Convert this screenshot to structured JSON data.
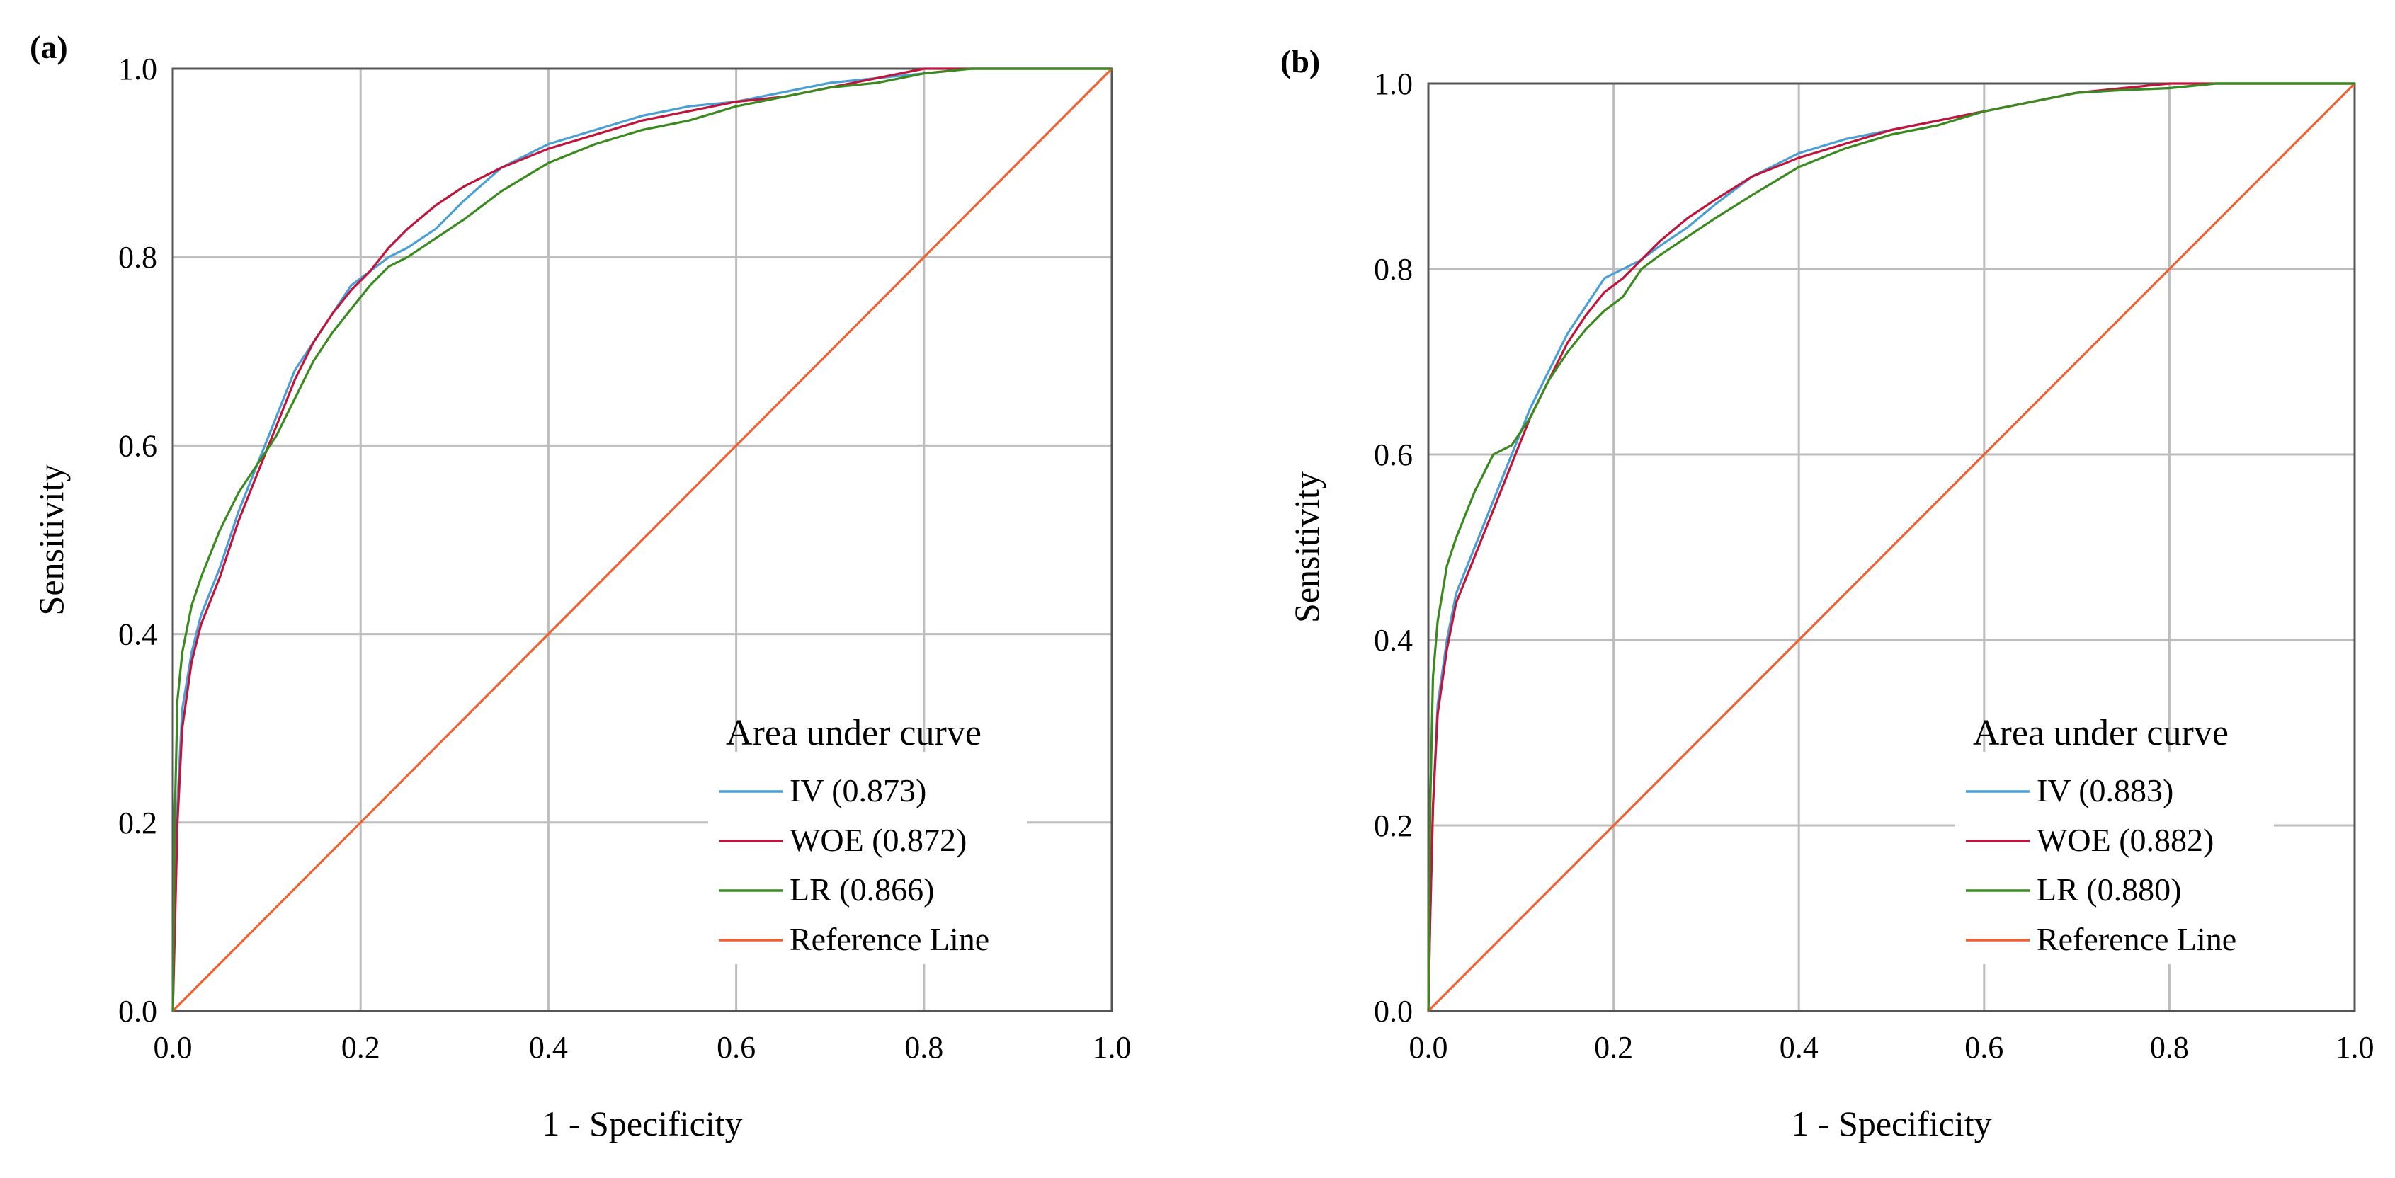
{
  "chart_data": [
    {
      "type": "line",
      "panel_label": "(a)",
      "xlabel": "1 - Specificity",
      "ylabel": "Sensitivity",
      "xlim": [
        0,
        1
      ],
      "ylim": [
        0,
        1
      ],
      "grid": true,
      "x_ticks": [
        "0.0",
        "0.2",
        "0.4",
        "0.6",
        "0.8",
        "1.0"
      ],
      "y_ticks": [
        "0.0",
        "0.2",
        "0.4",
        "0.6",
        "0.8",
        "1.0"
      ],
      "legend": {
        "title": "Area under curve",
        "placement": "bottom-right"
      },
      "series": [
        {
          "name": "IV (0.873)",
          "color": "#4a9fd6",
          "x": [
            0,
            0.002,
            0.005,
            0.01,
            0.02,
            0.03,
            0.05,
            0.07,
            0.09,
            0.11,
            0.13,
            0.15,
            0.17,
            0.19,
            0.21,
            0.23,
            0.25,
            0.28,
            0.31,
            0.35,
            0.4,
            0.45,
            0.5,
            0.55,
            0.6,
            0.65,
            0.7,
            0.75,
            0.8,
            0.85,
            0.9,
            0.95,
            1.0
          ],
          "y": [
            0,
            0.1,
            0.22,
            0.32,
            0.38,
            0.42,
            0.47,
            0.53,
            0.58,
            0.63,
            0.68,
            0.71,
            0.74,
            0.77,
            0.785,
            0.8,
            0.81,
            0.83,
            0.86,
            0.895,
            0.92,
            0.935,
            0.95,
            0.96,
            0.965,
            0.975,
            0.985,
            0.99,
            0.995,
            1.0,
            1.0,
            1.0,
            1.0
          ]
        },
        {
          "name": "WOE (0.872)",
          "color": "#c0143c",
          "x": [
            0,
            0.002,
            0.005,
            0.01,
            0.02,
            0.03,
            0.05,
            0.07,
            0.09,
            0.11,
            0.13,
            0.15,
            0.17,
            0.19,
            0.21,
            0.23,
            0.25,
            0.28,
            0.31,
            0.35,
            0.4,
            0.45,
            0.5,
            0.55,
            0.6,
            0.65,
            0.7,
            0.75,
            0.8,
            0.85,
            0.9,
            0.95,
            1.0
          ],
          "y": [
            0,
            0.08,
            0.2,
            0.3,
            0.37,
            0.41,
            0.46,
            0.52,
            0.57,
            0.62,
            0.67,
            0.71,
            0.74,
            0.765,
            0.785,
            0.81,
            0.83,
            0.855,
            0.875,
            0.895,
            0.915,
            0.93,
            0.945,
            0.955,
            0.965,
            0.97,
            0.98,
            0.99,
            1.0,
            1.0,
            1.0,
            1.0,
            1.0
          ]
        },
        {
          "name": "LR (0.866)",
          "color": "#3a8a1f",
          "x": [
            0,
            0.002,
            0.005,
            0.01,
            0.02,
            0.03,
            0.05,
            0.07,
            0.09,
            0.11,
            0.13,
            0.15,
            0.17,
            0.19,
            0.21,
            0.23,
            0.25,
            0.28,
            0.31,
            0.35,
            0.4,
            0.45,
            0.5,
            0.55,
            0.6,
            0.65,
            0.7,
            0.75,
            0.8,
            0.85,
            0.9,
            0.95,
            1.0
          ],
          "y": [
            0,
            0.2,
            0.33,
            0.38,
            0.43,
            0.46,
            0.51,
            0.55,
            0.58,
            0.61,
            0.65,
            0.69,
            0.72,
            0.745,
            0.77,
            0.79,
            0.8,
            0.82,
            0.84,
            0.87,
            0.9,
            0.92,
            0.935,
            0.945,
            0.96,
            0.97,
            0.98,
            0.985,
            0.995,
            1.0,
            1.0,
            1.0,
            1.0
          ]
        },
        {
          "name": "Reference Line",
          "color": "#f06030",
          "x": [
            0,
            1
          ],
          "y": [
            0,
            1
          ]
        }
      ]
    },
    {
      "type": "line",
      "panel_label": "(b)",
      "xlabel": "1 - Specificity",
      "ylabel": "Sensitivity",
      "xlim": [
        0,
        1
      ],
      "ylim": [
        0,
        1
      ],
      "grid": true,
      "x_ticks": [
        "0.0",
        "0.2",
        "0.4",
        "0.6",
        "0.8",
        "1.0"
      ],
      "y_ticks": [
        "0.0",
        "0.2",
        "0.4",
        "0.6",
        "0.8",
        "1.0"
      ],
      "legend": {
        "title": "Area under curve",
        "placement": "bottom-right"
      },
      "series": [
        {
          "name": "IV (0.883)",
          "color": "#4a9fd6",
          "x": [
            0,
            0.002,
            0.005,
            0.01,
            0.02,
            0.03,
            0.05,
            0.07,
            0.09,
            0.11,
            0.13,
            0.15,
            0.17,
            0.19,
            0.21,
            0.23,
            0.25,
            0.28,
            0.31,
            0.35,
            0.4,
            0.45,
            0.5,
            0.55,
            0.6,
            0.65,
            0.7,
            0.75,
            0.8,
            0.85,
            0.9,
            0.95,
            1.0
          ],
          "y": [
            0,
            0.1,
            0.22,
            0.33,
            0.4,
            0.45,
            0.5,
            0.55,
            0.6,
            0.65,
            0.69,
            0.73,
            0.76,
            0.79,
            0.8,
            0.81,
            0.825,
            0.845,
            0.87,
            0.9,
            0.925,
            0.94,
            0.95,
            0.96,
            0.97,
            0.98,
            0.99,
            0.993,
            0.995,
            1.0,
            1.0,
            1.0,
            1.0
          ]
        },
        {
          "name": "WOE (0.882)",
          "color": "#c0143c",
          "x": [
            0,
            0.002,
            0.005,
            0.01,
            0.02,
            0.03,
            0.05,
            0.07,
            0.09,
            0.11,
            0.13,
            0.15,
            0.17,
            0.19,
            0.21,
            0.23,
            0.25,
            0.28,
            0.31,
            0.35,
            0.4,
            0.45,
            0.5,
            0.55,
            0.6,
            0.65,
            0.7,
            0.75,
            0.8,
            0.85,
            0.9,
            0.95,
            1.0
          ],
          "y": [
            0,
            0.1,
            0.22,
            0.32,
            0.39,
            0.44,
            0.49,
            0.54,
            0.59,
            0.64,
            0.68,
            0.72,
            0.75,
            0.775,
            0.79,
            0.81,
            0.83,
            0.855,
            0.875,
            0.9,
            0.92,
            0.935,
            0.95,
            0.96,
            0.97,
            0.98,
            0.99,
            0.995,
            1.0,
            1.0,
            1.0,
            1.0,
            1.0
          ]
        },
        {
          "name": "LR (0.880)",
          "color": "#3a8a1f",
          "x": [
            0,
            0.002,
            0.005,
            0.01,
            0.02,
            0.03,
            0.05,
            0.07,
            0.09,
            0.11,
            0.13,
            0.15,
            0.17,
            0.19,
            0.21,
            0.23,
            0.25,
            0.28,
            0.31,
            0.35,
            0.4,
            0.45,
            0.5,
            0.55,
            0.6,
            0.65,
            0.7,
            0.75,
            0.8,
            0.85,
            0.9,
            0.95,
            1.0
          ],
          "y": [
            0,
            0.22,
            0.36,
            0.42,
            0.48,
            0.51,
            0.56,
            0.6,
            0.61,
            0.64,
            0.68,
            0.71,
            0.735,
            0.755,
            0.77,
            0.8,
            0.815,
            0.835,
            0.855,
            0.88,
            0.91,
            0.93,
            0.945,
            0.955,
            0.97,
            0.98,
            0.99,
            0.993,
            0.995,
            1.0,
            1.0,
            1.0,
            1.0
          ]
        },
        {
          "name": "Reference Line",
          "color": "#f06030",
          "x": [
            0,
            1
          ],
          "y": [
            0,
            1
          ]
        }
      ]
    }
  ]
}
